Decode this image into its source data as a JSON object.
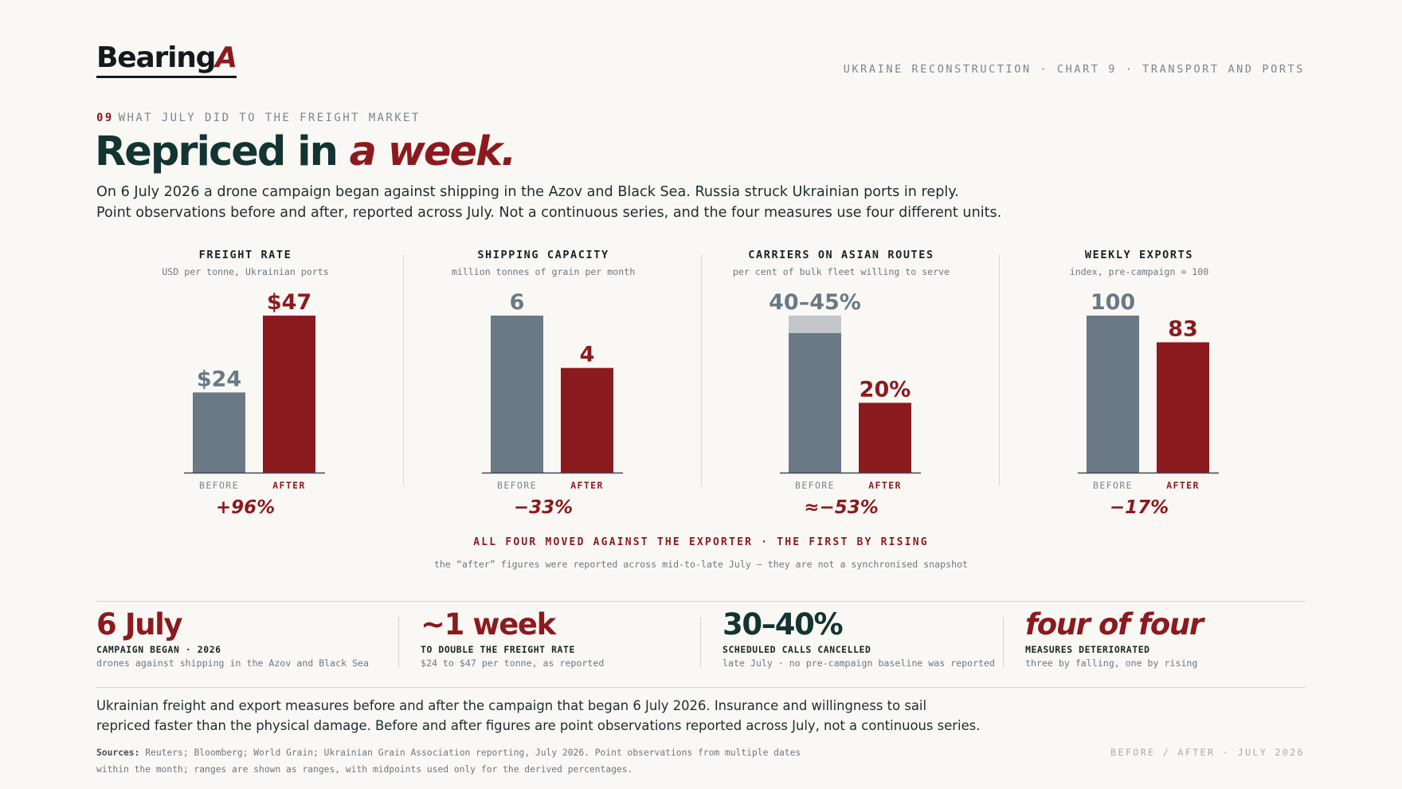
{
  "header": {
    "logo_text": "Bearing",
    "logo_mark": "A",
    "kicker": "UKRAINE RECONSTRUCTION · CHART 9 · TRANSPORT AND PORTS",
    "eyebrow_number": "09",
    "eyebrow_text": "WHAT JULY DID TO THE FREIGHT MARKET",
    "headline_plain": "Repriced in",
    "headline_accent": "a week.",
    "dek_line1": "On 6 July 2026 a drone campaign began against shipping in the Azov and Black Sea. Russia struck Ukrainian ports in reply.",
    "dek_line2": "Point observations before and after, reported across July. Not a continuous series, and the four measures use four different units."
  },
  "colors": {
    "before": "#6b7886",
    "after": "#8b1a1f",
    "range": "#c3c6cb",
    "accent": "#8b1a1f",
    "heading": "#133431"
  },
  "chart_data": [
    {
      "type": "bar",
      "title": "FREIGHT RATE",
      "unit": "USD per tonne, Ukrainian ports",
      "categories": [
        "BEFORE",
        "AFTER"
      ],
      "values": [
        24,
        47
      ],
      "value_labels": [
        "$24",
        "$47"
      ],
      "ylim": [
        0,
        47
      ],
      "change": "+96%"
    },
    {
      "type": "bar",
      "title": "SHIPPING CAPACITY",
      "unit": "million tonnes of grain per month",
      "categories": [
        "BEFORE",
        "AFTER"
      ],
      "values": [
        6,
        4
      ],
      "value_labels": [
        "6",
        "4"
      ],
      "ylim": [
        0,
        6
      ],
      "change": "−33%"
    },
    {
      "type": "bar",
      "title": "CARRIERS ON ASIAN ROUTES",
      "unit": "per cent of bulk fleet willing to serve",
      "categories": [
        "BEFORE",
        "AFTER"
      ],
      "values": [
        40,
        20
      ],
      "range_high": [
        45,
        null
      ],
      "value_labels": [
        "40–45%",
        "20%"
      ],
      "ylim": [
        0,
        45
      ],
      "change": "≈−53%"
    },
    {
      "type": "bar",
      "title": "WEEKLY EXPORTS",
      "unit": "index, pre-campaign = 100",
      "categories": [
        "BEFORE",
        "AFTER"
      ],
      "values": [
        100,
        83
      ],
      "value_labels": [
        "100",
        "83"
      ],
      "ylim": [
        0,
        100
      ],
      "change": "−17%"
    }
  ],
  "summary": {
    "headline": "ALL FOUR MOVED AGAINST THE EXPORTER · THE FIRST BY RISING",
    "note": "the “after” figures were reported across mid-to-late July — they are not a synchronised snapshot"
  },
  "stats": [
    {
      "value": "6 July",
      "label": "CAMPAIGN BEGAN · 2026",
      "sub": "drones against shipping in the Azov and Black Sea"
    },
    {
      "value": "~1 week",
      "label": "TO DOUBLE THE FREIGHT RATE",
      "sub": "$24 to $47 per tonne, as reported"
    },
    {
      "value": "30–40%",
      "label": "SCHEDULED CALLS CANCELLED",
      "sub": "late July · no pre-campaign baseline was reported"
    },
    {
      "value": "four of four",
      "label": "MEASURES DETERIORATED",
      "sub": "three by falling, one by rising"
    }
  ],
  "footer": {
    "caption_line1": "Ukrainian freight and export measures before and after the campaign that began 6 July 2026. Insurance and willingness to sail",
    "caption_line2": "repriced faster than the physical damage. Before and after figures are point observations reported across July, not a continuous series.",
    "sources_label": "Sources:",
    "sources_line1": "Reuters; Bloomberg; World Grain; Ukrainian Grain Association reporting, July 2026. Point observations from multiple dates",
    "sources_line2": "within the month; ranges are shown as ranges, with midpoints used only for the derived percentages.",
    "right_note": "BEFORE / AFTER · JULY 2026"
  }
}
